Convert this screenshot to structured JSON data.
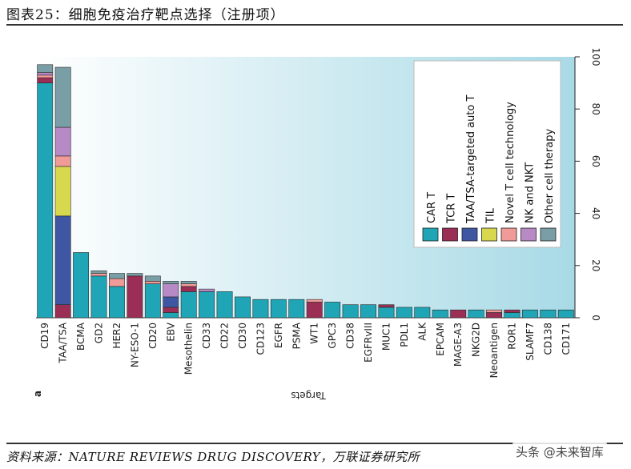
{
  "header": {
    "title": "图表25：细胞免疫治疗靶点选择（注册项）"
  },
  "footer": {
    "source": "资料来源：NATURE REVIEWS DRUG DISCOVERY，万联证券研究所",
    "watermark": "头条 @未来智库"
  },
  "colors": {
    "bg_left": "#ffffff",
    "bg_right": "#a8dae6",
    "CAR T": "#1fa5b5",
    "TCR T": "#9b2e55",
    "TAA/TSA-targeted auto T": "#3f56a3",
    "TIL": "#d8d84f",
    "Novel T cell technology": "#f19b99",
    "NK and NKT": "#b78ac6",
    "Other cell therapy": "#7a9ea5"
  },
  "chart_data": {
    "type": "bar",
    "stacked": true,
    "panel_label": "a",
    "xlabel": "Targets",
    "ylabel": "",
    "ylim": [
      0,
      100
    ],
    "yticks": [
      "0",
      "20",
      "40",
      "60",
      "80",
      "100"
    ],
    "legend_position": "inside-top-right",
    "categories": [
      "CD19",
      "TAA/TSA",
      "BCMA",
      "GD2",
      "HER2",
      "NY-ESO-1",
      "CD20",
      "EBV",
      "Mesothelin",
      "CD33",
      "CD22",
      "CD30",
      "CD123",
      "EGFR",
      "PSMA",
      "WT1",
      "GPC3",
      "CD38",
      "EGFRvIII",
      "MUC1",
      "PDL1",
      "ALK",
      "EPCAM",
      "MAGE-A3",
      "NKG2D",
      "Neoantigen",
      "ROR1",
      "SLAMF7",
      "CD138",
      "CD171"
    ],
    "series": [
      {
        "name": "CAR T",
        "values": [
          90,
          0,
          25,
          16,
          12,
          0,
          13,
          2,
          10,
          10,
          10,
          8,
          7,
          7,
          7,
          0,
          6,
          5,
          5,
          4,
          4,
          4,
          3,
          0,
          3,
          0,
          2,
          3,
          3,
          3
        ]
      },
      {
        "name": "TCR T",
        "values": [
          2,
          5,
          0,
          0,
          0,
          16,
          0,
          2,
          2,
          0,
          0,
          0,
          0,
          0,
          0,
          6,
          0,
          0,
          0,
          1,
          0,
          0,
          0,
          3,
          0,
          2,
          1,
          0,
          0,
          0
        ]
      },
      {
        "name": "TAA/TSA-targeted auto T",
        "values": [
          0,
          34,
          0,
          0,
          0,
          0,
          0,
          4,
          0,
          0,
          0,
          0,
          0,
          0,
          0,
          0,
          0,
          0,
          0,
          0,
          0,
          0,
          0,
          0,
          0,
          0,
          0,
          0,
          0,
          0
        ]
      },
      {
        "name": "TIL",
        "values": [
          0,
          19,
          0,
          0,
          0,
          0,
          0,
          0,
          0,
          0,
          0,
          0,
          0,
          0,
          0,
          0,
          0,
          0,
          0,
          0,
          0,
          0,
          0,
          0,
          0,
          0,
          0,
          0,
          0,
          0
        ]
      },
      {
        "name": "Novel T cell technology",
        "values": [
          1,
          4,
          0,
          1,
          3,
          0,
          1,
          0,
          1,
          0,
          0,
          0,
          0,
          0,
          0,
          1,
          0,
          0,
          0,
          0,
          0,
          0,
          0,
          0,
          0,
          1,
          0,
          0,
          0,
          0
        ]
      },
      {
        "name": "NK and NKT",
        "values": [
          1,
          11,
          0,
          0,
          0,
          0,
          0,
          5,
          0,
          1,
          0,
          0,
          0,
          0,
          0,
          0,
          0,
          0,
          0,
          0,
          0,
          0,
          0,
          0,
          0,
          0,
          0,
          0,
          0,
          0
        ]
      },
      {
        "name": "Other cell therapy",
        "values": [
          3,
          23,
          0,
          1,
          2,
          1,
          2,
          1,
          1,
          0,
          0,
          0,
          0,
          0,
          0,
          0,
          0,
          0,
          0,
          0,
          0,
          0,
          0,
          0,
          0,
          0,
          0,
          0,
          0,
          0
        ]
      }
    ]
  }
}
